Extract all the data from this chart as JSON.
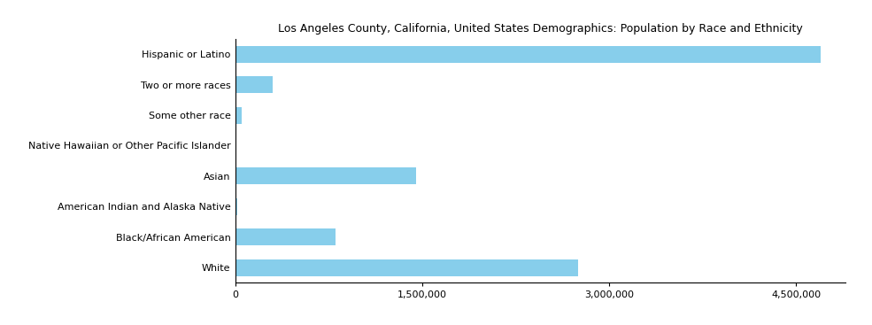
{
  "title": "Los Angeles County, California, United States Demographics: Population by Race and Ethnicity",
  "categories": [
    "Hispanic or Latino",
    "Two or more races",
    "Some other race",
    "Native Hawaiian or Other Pacific Islander",
    "Asian",
    "American Indian and Alaska Native",
    "Black/African American",
    "White"
  ],
  "values": [
    4700000,
    300000,
    50000,
    10000,
    1450000,
    15000,
    800000,
    2750000
  ],
  "bar_color": "#87CEEB",
  "background_color": "#ffffff",
  "xlim": [
    0,
    4900000
  ],
  "xticks": [
    0,
    1500000,
    3000000,
    4500000
  ],
  "xtick_labels": [
    "0",
    "1,500,000",
    "3,000,000",
    "4,500,000"
  ],
  "title_fontsize": 9,
  "tick_fontsize": 8,
  "label_fontsize": 8
}
